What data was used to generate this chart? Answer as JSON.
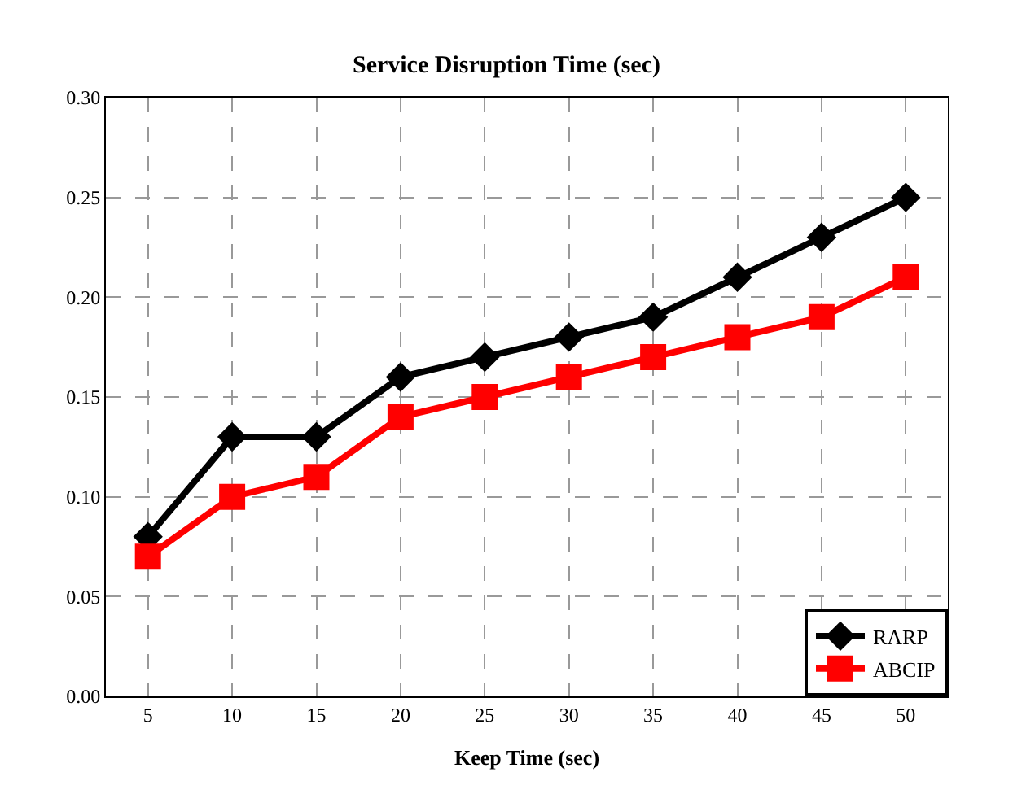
{
  "chart_data": {
    "type": "line",
    "title": "Service Disruption Time (sec)",
    "xlabel": "Keep Time (sec)",
    "categories": [
      "5",
      "10",
      "15",
      "20",
      "25",
      "30",
      "35",
      "40",
      "45",
      "50"
    ],
    "series": [
      {
        "name": "RARP",
        "color": "#000000",
        "marker": "diamond",
        "values": [
          0.08,
          0.13,
          0.13,
          0.16,
          0.17,
          0.18,
          0.19,
          0.21,
          0.23,
          0.25
        ]
      },
      {
        "name": "ABCIP",
        "color": "#ff0000",
        "marker": "square",
        "values": [
          0.07,
          0.1,
          0.11,
          0.14,
          0.15,
          0.16,
          0.17,
          0.18,
          0.19,
          0.21
        ]
      }
    ],
    "ylim": [
      0,
      0.3
    ],
    "yticks": [
      {
        "value": 0,
        "label": "0.00"
      },
      {
        "value": 0.05,
        "label": "0.05"
      },
      {
        "value": 0.1,
        "label": "0.10"
      },
      {
        "value": 0.15,
        "label": "0.15"
      },
      {
        "value": 0.2,
        "label": "0.20"
      },
      {
        "value": 0.25,
        "label": "0.25"
      },
      {
        "value": 0.3,
        "label": "0.30"
      }
    ],
    "grid": true,
    "legend": "bottom right",
    "line_style": "solid"
  }
}
